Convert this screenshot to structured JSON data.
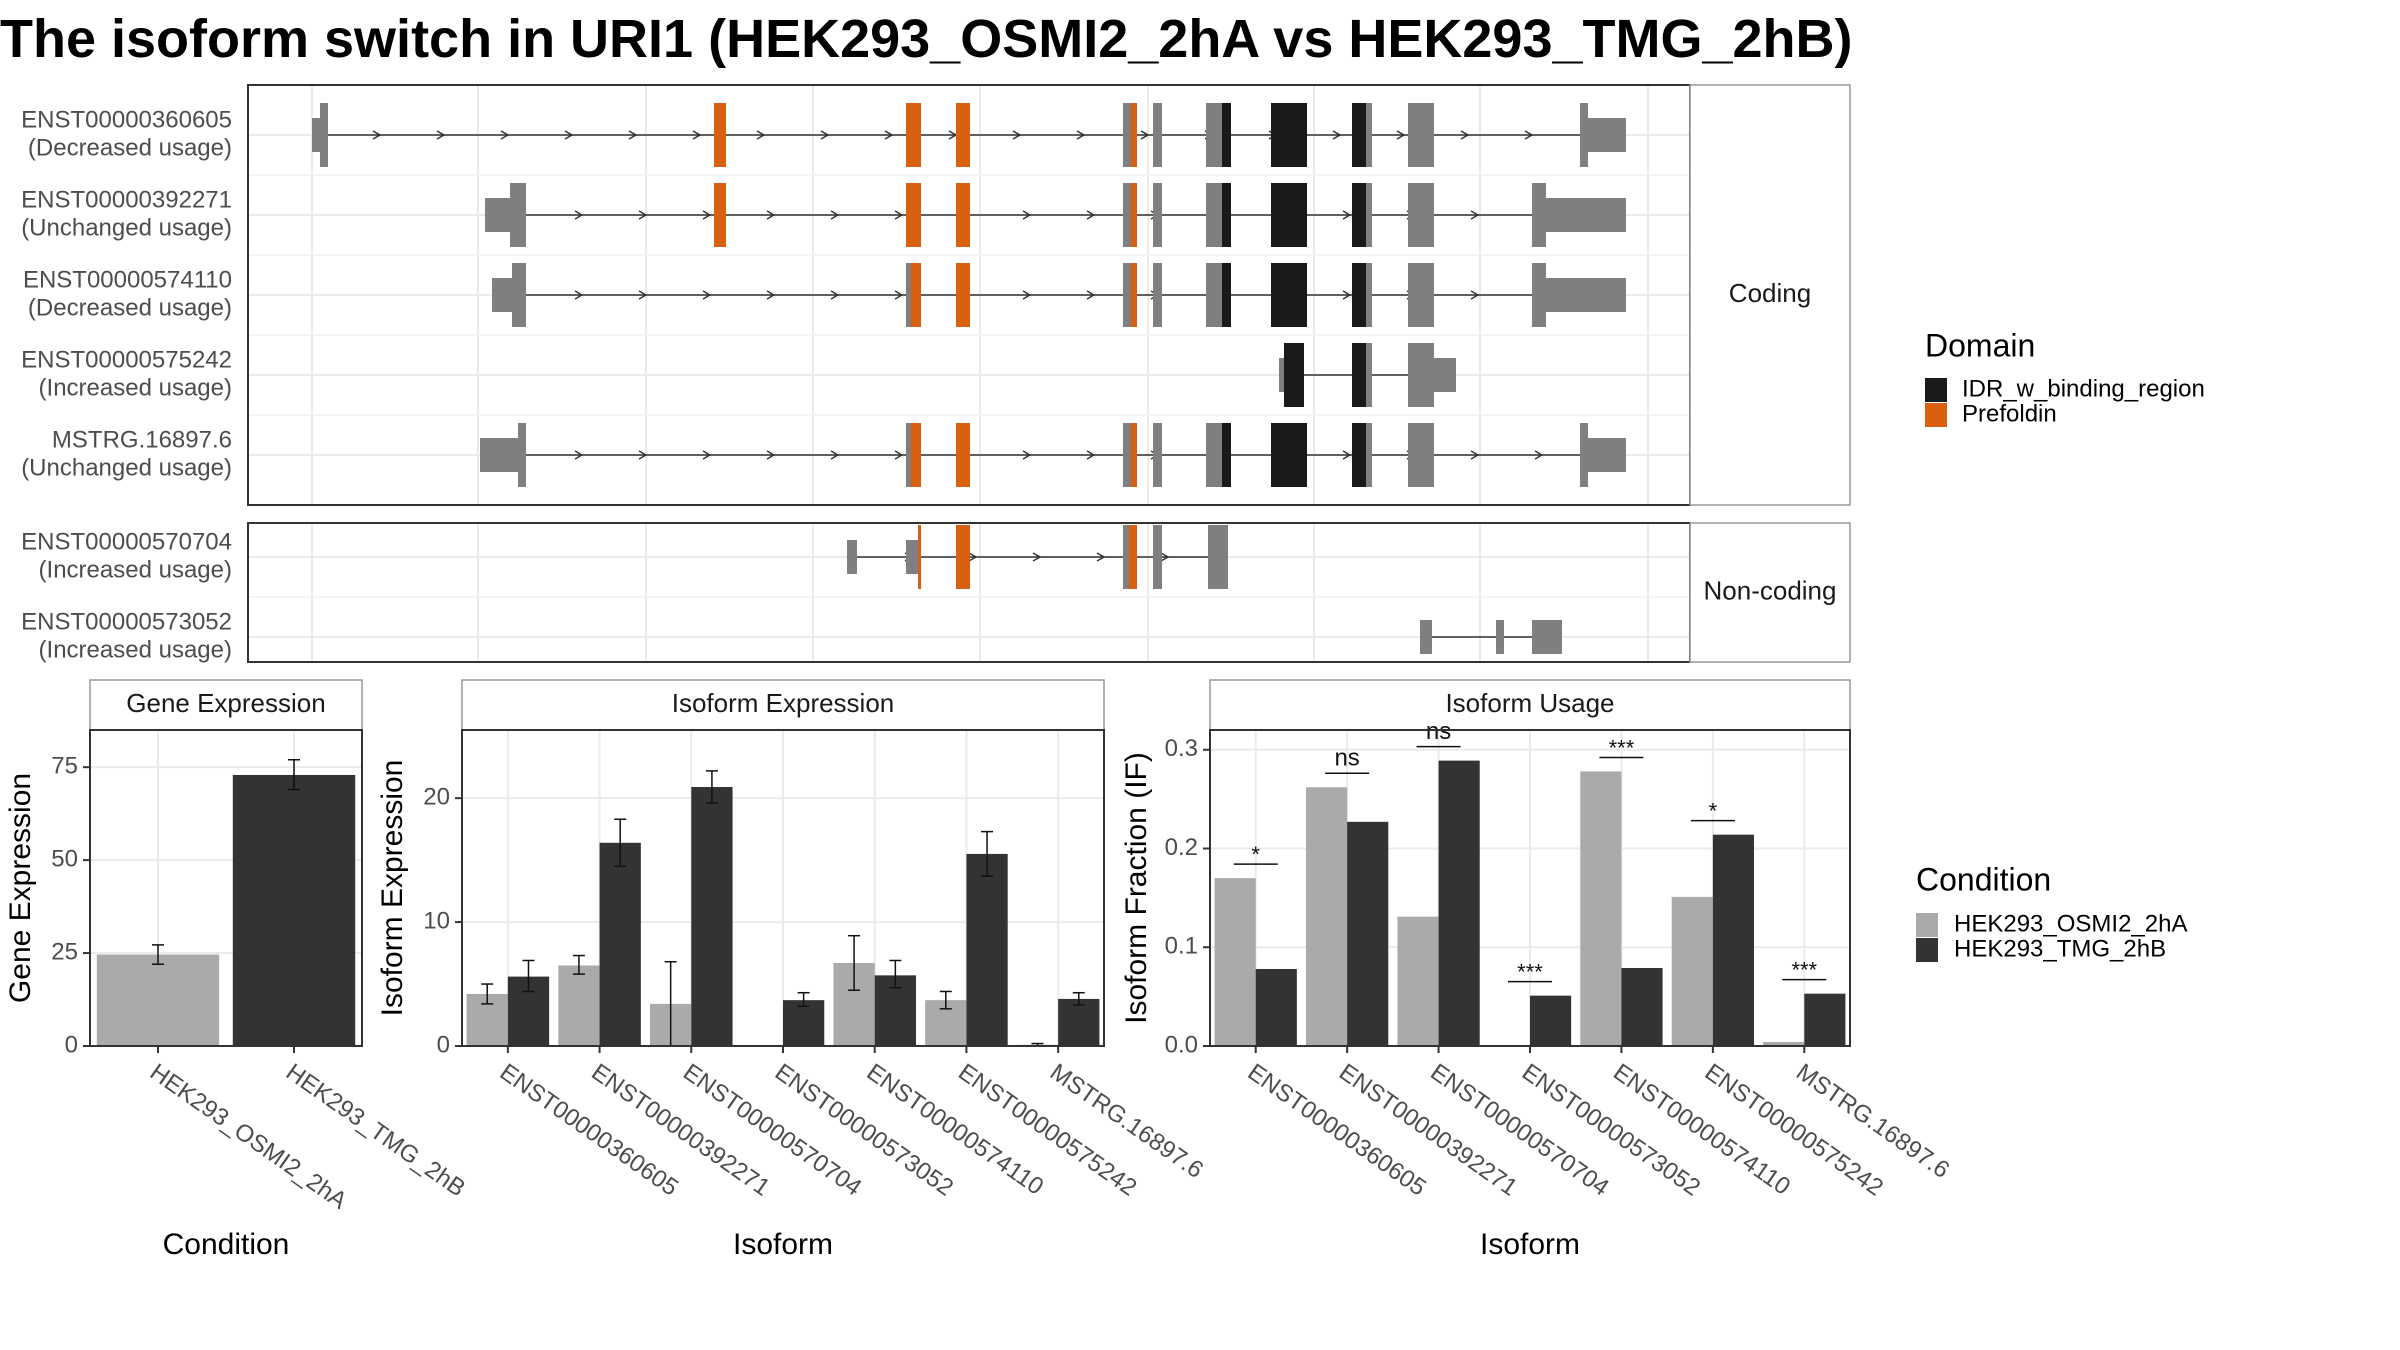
{
  "title": "The isoform switch in URI1 (HEK293_OSMI2_2hA vs HEK293_TMG_2hB)",
  "colors": {
    "idr": "#1a1a1a",
    "prefoldin": "#d9600e",
    "exon_plain": "#7f7f7f",
    "cond_a": "#aaaaaa",
    "cond_b": "#333333",
    "panel_border": "#333333",
    "strip_fill": "#ffffff",
    "grid": "#ebebeb"
  },
  "chart_data": [
    {
      "type": "gene-structure",
      "panel_labels": [
        "Coding",
        "Non-coding"
      ],
      "tracks": [
        {
          "name": "ENST00000360605",
          "usage": "(Decreased usage)",
          "group": "Coding"
        },
        {
          "name": "ENST00000392271",
          "usage": "(Unchanged usage)",
          "group": "Coding"
        },
        {
          "name": "ENST00000574110",
          "usage": "(Decreased usage)",
          "group": "Coding"
        },
        {
          "name": "ENST00000575242",
          "usage": "(Increased usage)",
          "group": "Coding"
        },
        {
          "name": "MSTRG.16897.6",
          "usage": "(Unchanged usage)",
          "group": "Coding"
        },
        {
          "name": "ENST00000570704",
          "usage": "(Increased usage)",
          "group": "Non-coding"
        },
        {
          "name": "ENST00000573052",
          "usage": "(Increased usage)",
          "group": "Non-coding"
        }
      ],
      "legend": {
        "title": "Domain",
        "items": [
          "IDR_w_binding_region",
          "Prefoldin"
        ]
      }
    },
    {
      "type": "bar",
      "title": "Gene Expression",
      "xlabel": "Condition",
      "ylabel": "Gene Expression",
      "categories": [
        "HEK293_OSMI2_2hA",
        "HEK293_TMG_2hB"
      ],
      "values": [
        24.6,
        72.9
      ],
      "errors": [
        [
          22.0,
          27.2
        ],
        [
          69.0,
          77.0
        ]
      ],
      "ylim": [
        0,
        85
      ],
      "yticks": [
        0,
        25,
        50,
        75
      ]
    },
    {
      "type": "bar",
      "title": "Isoform Expression",
      "xlabel": "Isoform",
      "ylabel": "Isoform Expression",
      "categories": [
        "ENST00000360605",
        "ENST00000392271",
        "ENST00000570704",
        "ENST00000573052",
        "ENST00000574110",
        "ENST00000575242",
        "MSTRG.16897.6"
      ],
      "series": [
        {
          "name": "HEK293_OSMI2_2hA",
          "values": [
            4.2,
            6.5,
            3.4,
            0.0,
            6.7,
            3.7,
            0.1
          ],
          "errors": [
            [
              3.4,
              5.0
            ],
            [
              5.8,
              7.3
            ],
            [
              0.0,
              6.8
            ],
            [
              0.0,
              0.0
            ],
            [
              4.5,
              8.9
            ],
            [
              3.0,
              4.4
            ],
            [
              0.0,
              0.2
            ]
          ]
        },
        {
          "name": "HEK293_TMG_2hB",
          "values": [
            5.6,
            16.4,
            20.9,
            3.7,
            5.7,
            15.5,
            3.8
          ],
          "errors": [
            [
              4.4,
              6.9
            ],
            [
              14.5,
              18.3
            ],
            [
              19.6,
              22.2
            ],
            [
              3.2,
              4.3
            ],
            [
              4.7,
              6.9
            ],
            [
              13.7,
              17.3
            ],
            [
              3.3,
              4.3
            ]
          ]
        }
      ],
      "ylim": [
        0,
        25.5
      ],
      "yticks": [
        0,
        10,
        20
      ]
    },
    {
      "type": "bar",
      "title": "Isoform Usage",
      "xlabel": "Isoform",
      "ylabel": "Isoform Fraction (IF)",
      "categories": [
        "ENST00000360605",
        "ENST00000392271",
        "ENST00000570704",
        "ENST00000573052",
        "ENST00000574110",
        "ENST00000575242",
        "MSTRG.16897.6"
      ],
      "series": [
        {
          "name": "HEK293_OSMI2_2hA",
          "values": [
            0.17,
            0.262,
            0.131,
            0.0,
            0.278,
            0.151,
            0.004
          ]
        },
        {
          "name": "HEK293_TMG_2hB",
          "values": [
            0.078,
            0.227,
            0.289,
            0.051,
            0.079,
            0.214,
            0.053
          ]
        }
      ],
      "significance": [
        "*",
        "ns",
        "ns",
        "***",
        "***",
        "*",
        "***"
      ],
      "ylim": [
        0,
        0.32
      ],
      "yticks": [
        "0.0",
        "0.1",
        "0.2",
        "0.3"
      ],
      "legend": {
        "title": "Condition",
        "items": [
          "HEK293_OSMI2_2hA",
          "HEK293_TMG_2hB"
        ]
      }
    }
  ]
}
